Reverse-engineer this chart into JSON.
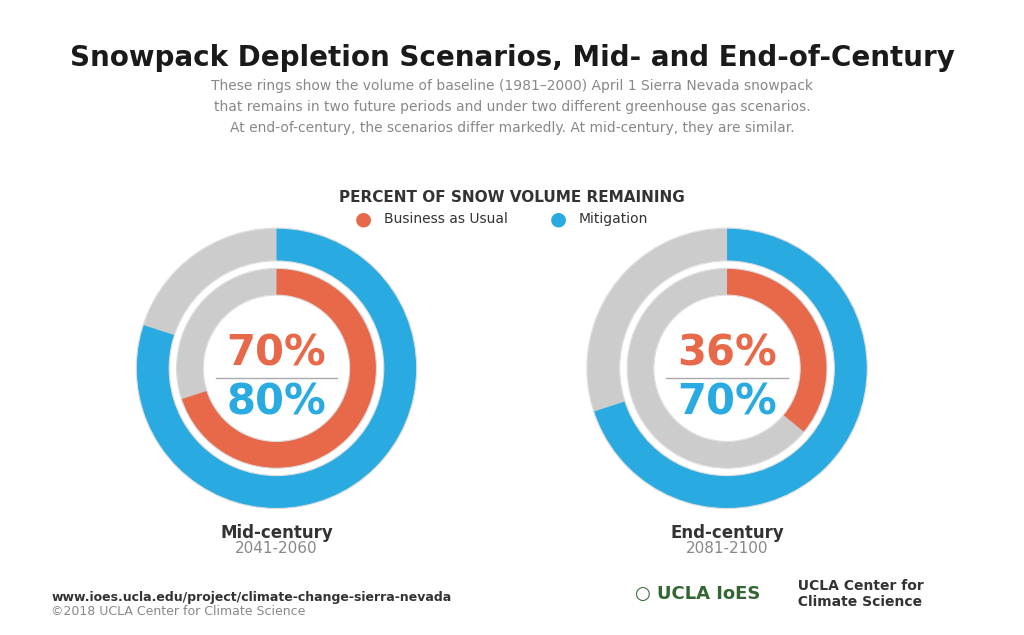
{
  "title": "Snowpack Depletion Scenarios, Mid- and End-of-Century",
  "subtitle": "These rings show the volume of baseline (1981–2000) April 1 Sierra Nevada snowpack\nthat remains in two future periods and under two different greenhouse gas scenarios.\nAt end-of-century, the scenarios differ markedly. At mid-century, they are similar.",
  "section_label": "PERCENT OF SNOW VOLUME REMAINING",
  "legend_bau": "Business as Usual",
  "legend_mit": "Mitigation",
  "charts": [
    {
      "title": "Mid-century",
      "subtitle": "2041-2060",
      "bau_pct": 70,
      "mit_pct": 80,
      "bau_label": "70%",
      "mit_label": "80%"
    },
    {
      "title": "End-century",
      "subtitle": "2081-2100",
      "bau_pct": 36,
      "mit_pct": 70,
      "bau_label": "36%",
      "mit_label": "70%"
    }
  ],
  "color_bau": "#E8694A",
  "color_mit": "#29ABE2",
  "color_gray": "#CCCCCC",
  "color_title": "#1a1a1a",
  "color_subtitle": "#888888",
  "color_section": "#333333",
  "color_chart_title": "#333333",
  "color_chart_subtitle": "#888888",
  "bg_color": "#FFFFFF",
  "footer_url": "www.ioes.ucla.edu/project/climate-change-sierra-nevada",
  "footer_copy": "©2018 UCLA Center for Climate Science"
}
